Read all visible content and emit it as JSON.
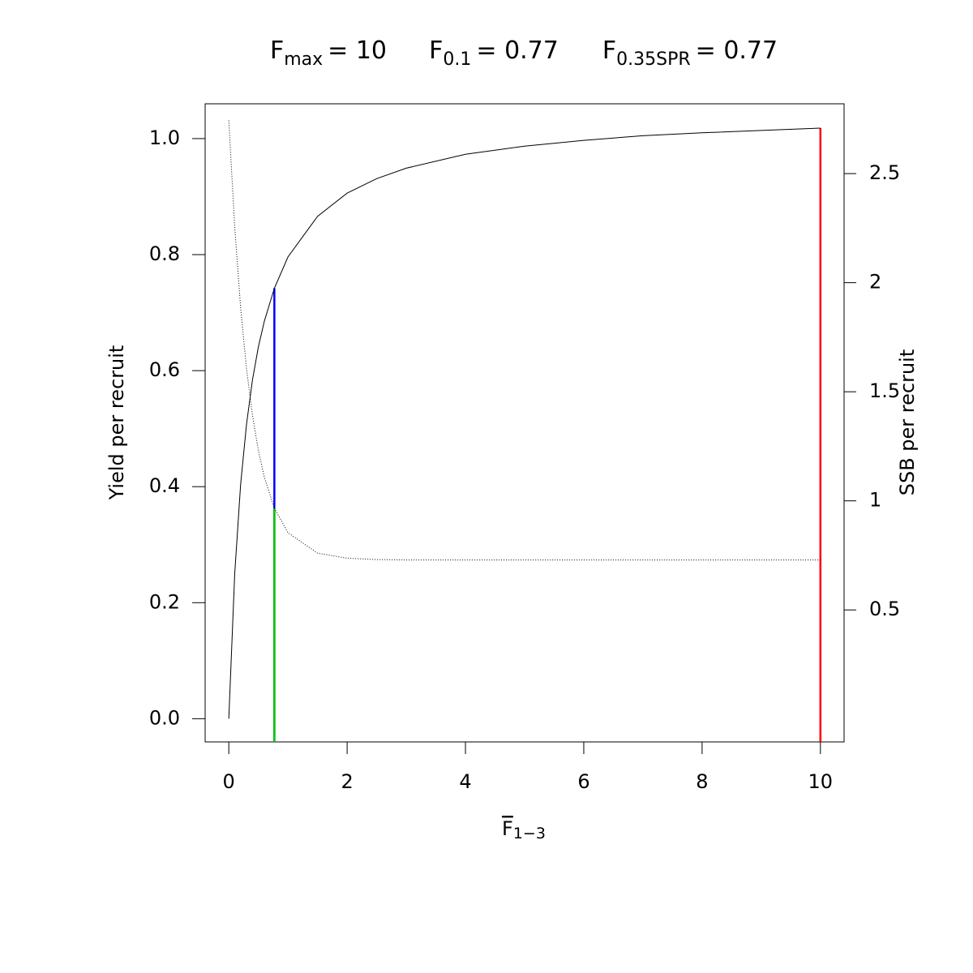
{
  "chart_data": {
    "type": "line",
    "title": [
      {
        "symbol": "F",
        "subscript": "max",
        "text": "= 10"
      },
      {
        "symbol": "F",
        "subscript": "0.1",
        "text": "= 0.77"
      },
      {
        "symbol": "F",
        "subscript": "0.35SPR",
        "text": "= 0.77"
      }
    ],
    "xlabel": {
      "symbol": "F",
      "subscript": "1−3"
    },
    "ylabel": "Yield per recruit",
    "y2label": "SSB per recruit",
    "x": [
      0,
      0.1,
      0.2,
      0.3,
      0.4,
      0.5,
      0.6,
      0.77,
      1,
      1.5,
      2,
      2.5,
      3,
      4,
      5,
      6,
      7,
      8,
      9,
      10
    ],
    "series": [
      {
        "color": "#000000",
        "style": "solid",
        "values": [
          0,
          0.25,
          0.404,
          0.508,
          0.584,
          0.641,
          0.685,
          0.742,
          0.796,
          0.866,
          0.906,
          0.931,
          0.949,
          0.973,
          0.987,
          0.997,
          1.005,
          1.01,
          1.014,
          1.018
        ]
      },
      {
        "color": "#000000",
        "style": "dotted",
        "axis": "y2",
        "values": [
          2.744,
          2.254,
          1.884,
          1.604,
          1.392,
          1.231,
          1.109,
          0.966,
          0.854,
          0.76,
          0.737,
          0.731,
          0.729,
          0.729,
          0.729,
          0.729,
          0.729,
          0.729,
          0.729,
          0.729
        ]
      }
    ],
    "ref_lines": [
      {
        "x": 10,
        "y": 1.018,
        "color": "#ff0000"
      },
      {
        "x": 0.77,
        "y": 0.742,
        "color": "#0000ff"
      },
      {
        "x": 0.77,
        "y": 0.966,
        "axis": "y2",
        "color": "#00cd00"
      }
    ],
    "xlim": [
      -0.4,
      10.4
    ],
    "xticks": [
      0,
      2,
      4,
      6,
      8,
      10
    ],
    "ylim": [
      -0.04,
      1.06
    ],
    "yticks": [
      {
        "value": 0,
        "label": "0.0"
      },
      0.2,
      0.4,
      0.6,
      0.8,
      {
        "value": 1,
        "label": "1.0"
      }
    ],
    "y2lim": [
      -0.105,
      2.82
    ],
    "y2ticks": [
      0.5,
      1,
      1.5,
      2,
      2.5
    ]
  }
}
